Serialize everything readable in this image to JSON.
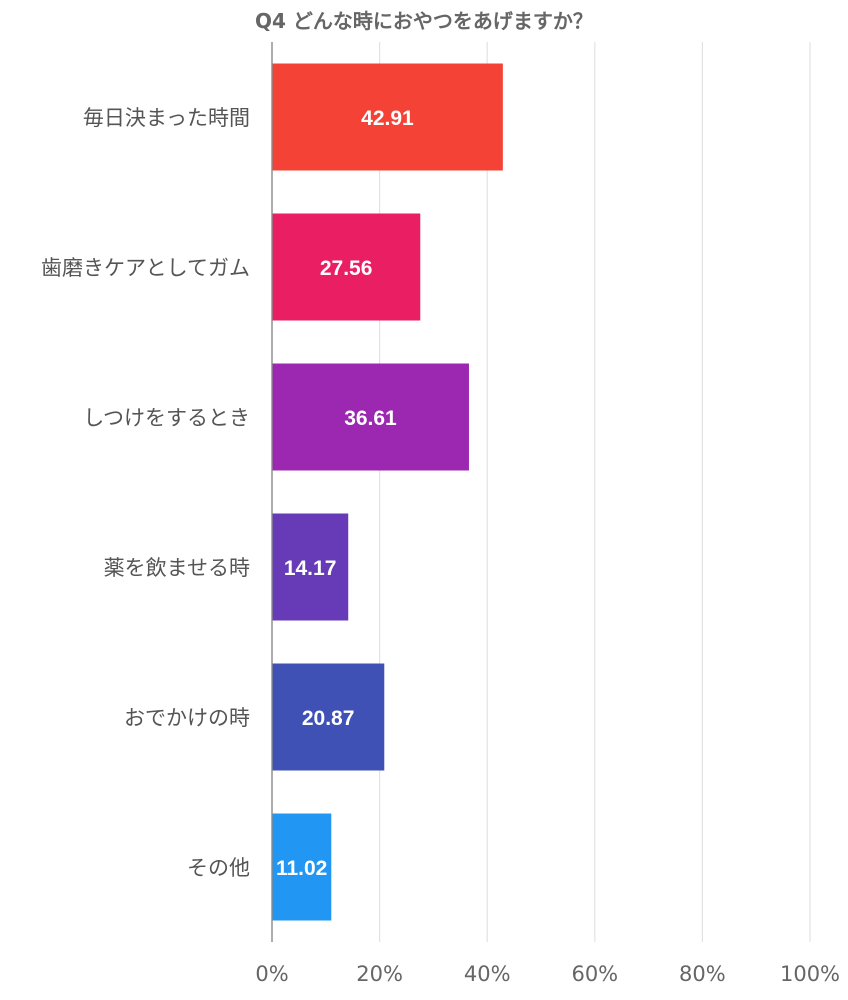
{
  "chart_data": {
    "type": "bar",
    "orientation": "horizontal",
    "title": "Q4 どんな時におやつをあげますか？",
    "categories": [
      "毎日決まった時間",
      "歯磨きケアとしてガム",
      "しつけをするとき",
      "薬を飲ませる時",
      "おでかけの時",
      "その他"
    ],
    "values": [
      42.91,
      27.56,
      36.61,
      14.17,
      20.87,
      11.02
    ],
    "value_labels": [
      "42.91",
      "27.56",
      "36.61",
      "14.17",
      "20.87",
      "11.02"
    ],
    "colors": [
      "#f44336",
      "#e91e63",
      "#9c27b0",
      "#673ab7",
      "#3f51b5",
      "#2196f3"
    ],
    "xlim": [
      0,
      100
    ],
    "x_ticks": [
      0,
      20,
      40,
      60,
      80,
      100
    ],
    "x_tick_labels": [
      "0%",
      "20%",
      "40%",
      "60%",
      "80%",
      "100%"
    ],
    "xlabel": "",
    "ylabel": "",
    "grid": true,
    "legend": "none"
  }
}
